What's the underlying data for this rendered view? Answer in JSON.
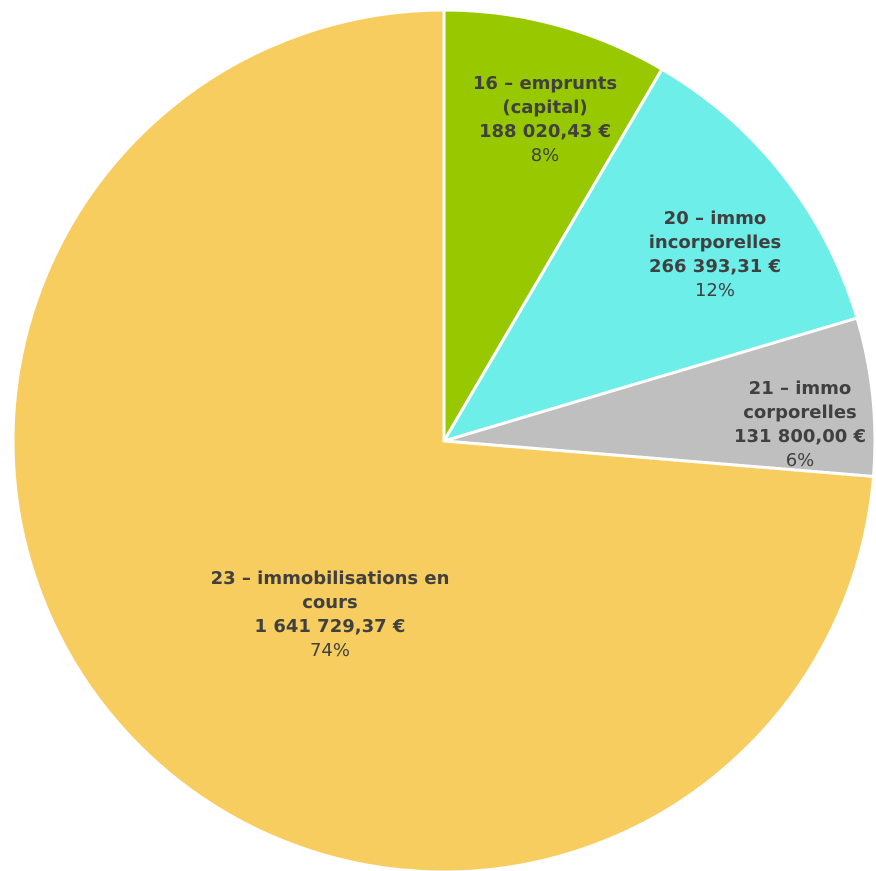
{
  "chart_data": {
    "type": "pie",
    "categories": [
      "16 – emprunts (capital)",
      "20 – immo incorporelles",
      "21 – immo corporelles",
      "23 – immobilisations en cours"
    ],
    "values": [
      188020.43,
      266393.31,
      131800.0,
      1641729.37
    ],
    "value_labels": [
      "188 020,43 €",
      "266 393,31 €",
      "131 800,00 €",
      "1 641 729,37 €"
    ],
    "percent_labels": [
      "8%",
      "12%",
      "6%",
      "74%"
    ],
    "colors": [
      "#97c800",
      "#6deee9",
      "#bfbfbf",
      "#f7cd5f"
    ]
  }
}
